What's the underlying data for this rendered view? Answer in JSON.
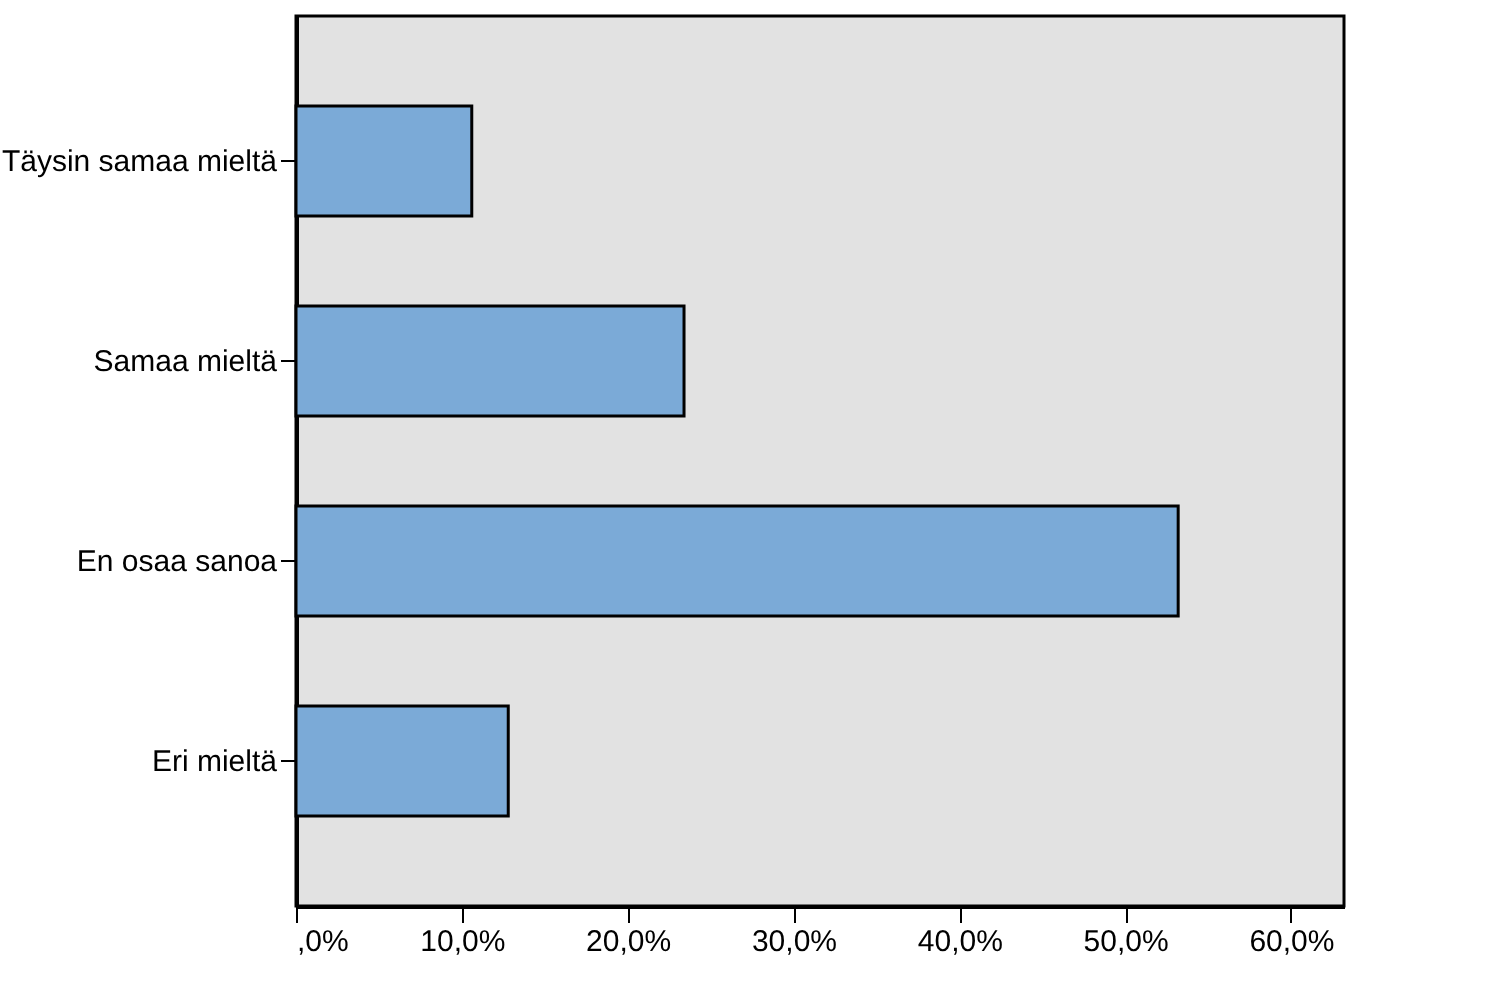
{
  "chart_data": {
    "type": "bar",
    "orientation": "horizontal",
    "categories": [
      "Täysin samaa mieltä",
      "Samaa mieltä",
      "En osaa sanoa",
      "Eri mieltä"
    ],
    "values": [
      10.6,
      23.4,
      53.2,
      12.8
    ],
    "color": "#7baad7",
    "xlim": [
      0,
      63.2
    ],
    "xticks": [
      {
        "value": 0,
        "label": ",0%"
      },
      {
        "value": 10,
        "label": "10,0%"
      },
      {
        "value": 20,
        "label": "20,0%"
      },
      {
        "value": 30,
        "label": "30,0%"
      },
      {
        "value": 40,
        "label": "40,0%"
      },
      {
        "value": 50,
        "label": "50,0%"
      },
      {
        "value": 60,
        "label": "60,0%"
      }
    ],
    "grid": false
  }
}
